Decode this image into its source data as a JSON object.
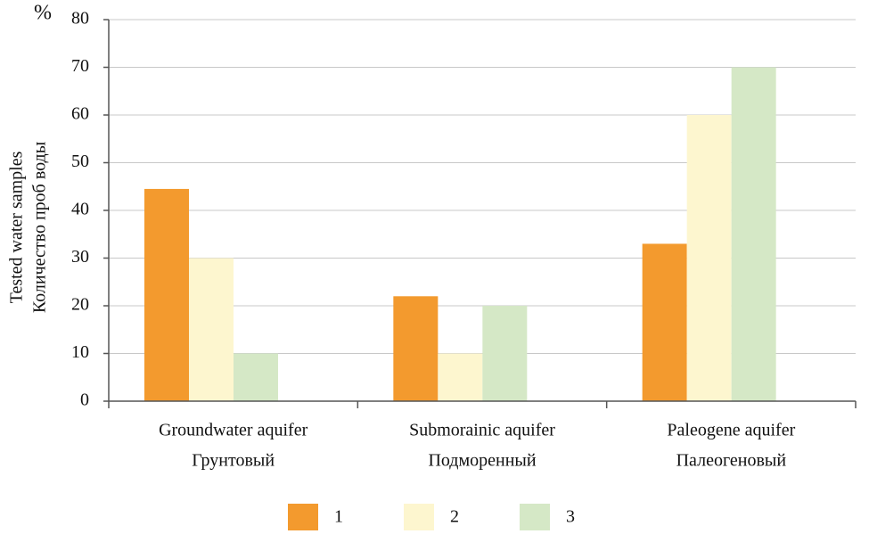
{
  "chart_data": {
    "type": "bar",
    "unit_label": "%",
    "ylabel": [
      "Tested water samples",
      "Количество проб воды"
    ],
    "categories": [
      [
        "Groundwater aquifer",
        "Грунтовый"
      ],
      [
        "Submorainic aquifer",
        "Подморенный"
      ],
      [
        "Paleogene aquifer",
        "Палеогеновый"
      ]
    ],
    "series": [
      {
        "name": "1",
        "color": "#f39a2e",
        "values": [
          44.5,
          22,
          33
        ]
      },
      {
        "name": "2",
        "color": "#fdf6cf",
        "values": [
          30,
          10,
          60
        ]
      },
      {
        "name": "3",
        "color": "#d5e8c6",
        "values": [
          10,
          20,
          70
        ]
      }
    ],
    "ylim": [
      0,
      80
    ],
    "yticks": [
      0,
      10,
      20,
      30,
      40,
      50,
      60,
      70,
      80
    ],
    "grid": true,
    "legend": "bottom"
  }
}
